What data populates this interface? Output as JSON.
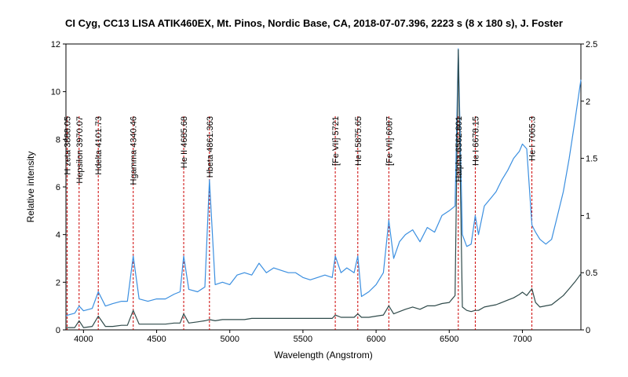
{
  "chart_data": {
    "type": "line",
    "title": "CI Cyg, CC13 LISA ATIK460EX, Mt. Pinos, Nordic Base, CA, 2018-07-07.396, 2223 s (8 x 180 s), J. Foster",
    "xlabel": "Wavelength (Angstrom)",
    "ylabel": "Relative intensity",
    "xlim": [
      3880,
      7400
    ],
    "ylim_left": [
      0,
      12
    ],
    "ylim_right": [
      0,
      2.5
    ],
    "x_ticks": [
      4000,
      4500,
      5000,
      5500,
      6000,
      6500,
      7000
    ],
    "y_ticks_left": [
      0,
      2,
      4,
      6,
      8,
      10,
      12
    ],
    "y_ticks_right": [
      0,
      0.5,
      1,
      1.5,
      2,
      2.5
    ],
    "colors": {
      "blue": "#3b8fe0",
      "dark": "#2f4a4a",
      "marker": "#cc0000"
    },
    "series": [
      {
        "axis": "left",
        "color": "#3b8fe0",
        "x": [
          3880,
          3940,
          3970,
          4000,
          4060,
          4101,
          4150,
          4200,
          4260,
          4300,
          4340,
          4380,
          4440,
          4500,
          4560,
          4620,
          4660,
          4685,
          4720,
          4780,
          4830,
          4861,
          4900,
          4950,
          5000,
          5050,
          5100,
          5150,
          5200,
          5250,
          5300,
          5350,
          5400,
          5450,
          5500,
          5550,
          5600,
          5650,
          5700,
          5721,
          5760,
          5800,
          5850,
          5875,
          5900,
          5950,
          6000,
          6050,
          6087,
          6120,
          6160,
          6200,
          6250,
          6300,
          6350,
          6400,
          6450,
          6500,
          6540,
          6562,
          6590,
          6620,
          6650,
          6678,
          6700,
          6740,
          6780,
          6820,
          6860,
          6900,
          6940,
          6980,
          7000,
          7030,
          7065,
          7090,
          7120,
          7160,
          7200,
          7240,
          7280,
          7320,
          7360,
          7400
        ],
        "y": [
          0.6,
          0.7,
          1.0,
          0.8,
          0.9,
          1.6,
          1.0,
          1.1,
          1.2,
          1.2,
          3.1,
          1.3,
          1.2,
          1.3,
          1.3,
          1.5,
          1.6,
          3.1,
          1.7,
          1.6,
          1.8,
          6.3,
          1.9,
          2.0,
          1.9,
          2.3,
          2.4,
          2.3,
          2.8,
          2.4,
          2.6,
          2.5,
          2.4,
          2.4,
          2.2,
          2.1,
          2.2,
          2.3,
          2.2,
          3.1,
          2.4,
          2.6,
          2.4,
          3.1,
          1.4,
          1.6,
          1.9,
          2.4,
          4.6,
          3.0,
          3.7,
          4.0,
          4.2,
          3.7,
          4.3,
          4.1,
          4.8,
          5.0,
          5.2,
          11.8,
          4.0,
          3.5,
          3.6,
          4.8,
          4.0,
          5.2,
          5.5,
          5.8,
          6.3,
          6.7,
          7.2,
          7.5,
          7.8,
          7.6,
          4.4,
          4.1,
          3.8,
          3.6,
          3.8,
          4.8,
          5.8,
          7.2,
          8.8,
          10.5
        ]
      },
      {
        "axis": "right",
        "color": "#2f4a4a",
        "x": [
          3880,
          3940,
          3970,
          4000,
          4060,
          4101,
          4150,
          4200,
          4260,
          4300,
          4340,
          4380,
          4440,
          4500,
          4560,
          4620,
          4660,
          4685,
          4720,
          4780,
          4830,
          4861,
          4900,
          4950,
          5000,
          5050,
          5100,
          5150,
          5200,
          5250,
          5300,
          5350,
          5400,
          5450,
          5500,
          5550,
          5600,
          5650,
          5700,
          5721,
          5760,
          5800,
          5850,
          5875,
          5900,
          5950,
          6000,
          6050,
          6087,
          6120,
          6160,
          6200,
          6250,
          6300,
          6350,
          6400,
          6450,
          6500,
          6540,
          6562,
          6590,
          6620,
          6650,
          6678,
          6700,
          6740,
          6780,
          6820,
          6860,
          6900,
          6940,
          6980,
          7000,
          7030,
          7065,
          7090,
          7120,
          7160,
          7200,
          7240,
          7280,
          7320,
          7360,
          7400
        ],
        "y": [
          0.02,
          0.02,
          0.08,
          0.02,
          0.03,
          0.12,
          0.03,
          0.03,
          0.04,
          0.04,
          0.17,
          0.05,
          0.05,
          0.05,
          0.05,
          0.06,
          0.06,
          0.14,
          0.06,
          0.07,
          0.08,
          0.09,
          0.08,
          0.09,
          0.09,
          0.09,
          0.09,
          0.1,
          0.1,
          0.1,
          0.1,
          0.1,
          0.1,
          0.1,
          0.1,
          0.1,
          0.1,
          0.1,
          0.1,
          0.13,
          0.11,
          0.11,
          0.11,
          0.14,
          0.11,
          0.11,
          0.12,
          0.13,
          0.21,
          0.14,
          0.16,
          0.18,
          0.2,
          0.18,
          0.21,
          0.21,
          0.23,
          0.24,
          0.3,
          2.45,
          0.2,
          0.17,
          0.16,
          0.17,
          0.17,
          0.2,
          0.21,
          0.22,
          0.24,
          0.26,
          0.28,
          0.31,
          0.33,
          0.3,
          0.36,
          0.24,
          0.2,
          0.21,
          0.22,
          0.26,
          0.3,
          0.36,
          0.42,
          0.49
        ]
      }
    ],
    "lines": [
      {
        "label": "H zeta 3888.05",
        "x": 3888
      },
      {
        "label": "Hepsilon 3970.07",
        "x": 3970
      },
      {
        "label": "Hdelta 4101.73",
        "x": 4101
      },
      {
        "label": "Hgamma 4340.46",
        "x": 4340
      },
      {
        "label": "He II 4685.68",
        "x": 4685
      },
      {
        "label": "Hbeta 4861.363",
        "x": 4861
      },
      {
        "label": "[Fe VII] 5721",
        "x": 5721
      },
      {
        "label": "He I 5875.65",
        "x": 5875
      },
      {
        "label": "[Fe VII] 6087",
        "x": 6087
      },
      {
        "label": "Halpha 6562.801",
        "x": 6562
      },
      {
        "label": "He I 6678.15",
        "x": 6678
      },
      {
        "label": "He I 7065.3",
        "x": 7065
      }
    ]
  }
}
